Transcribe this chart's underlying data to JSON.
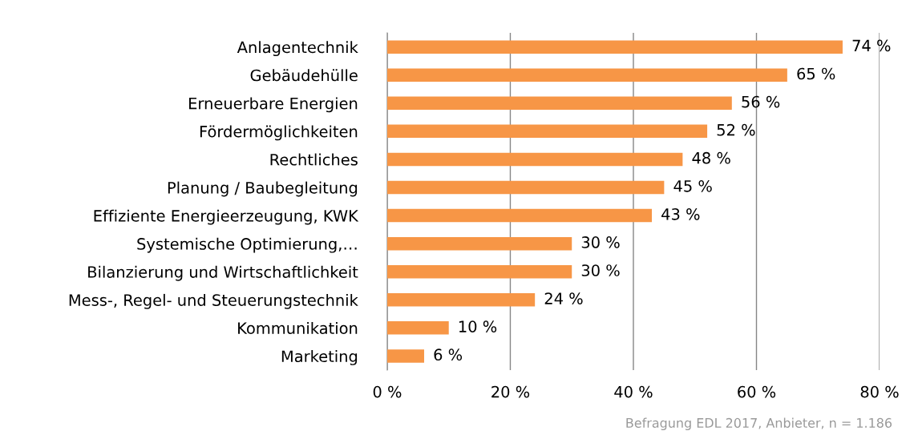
{
  "chart_data": {
    "type": "bar",
    "orientation": "horizontal",
    "categories": [
      "Anlagentechnik",
      "Gebäudehülle",
      "Erneuerbare Energien",
      "Fördermöglichkeiten",
      "Rechtliches",
      "Planung / Baubegleitung",
      "Effiziente Energieerzeugung, KWK",
      "Systemische Optimierung,…",
      "Bilanzierung und Wirtschaftlichkeit",
      "Mess-, Regel- und Steuerungstechnik",
      "Kommunikation",
      "Marketing"
    ],
    "values": [
      74,
      65,
      56,
      52,
      48,
      45,
      43,
      30,
      30,
      24,
      10,
      6
    ],
    "value_labels": [
      "74 %",
      "65 %",
      "56 %",
      "52 %",
      "48 %",
      "45 %",
      "43 %",
      "30 %",
      "30 %",
      "24 %",
      "10 %",
      "6 %"
    ],
    "color": "#f79646",
    "xlim": [
      0,
      80
    ],
    "xticks": [
      {
        "value": 0,
        "label": "0 %"
      },
      {
        "value": 20,
        "label": "20 %"
      },
      {
        "value": 40,
        "label": "40 %"
      },
      {
        "value": 60,
        "label": "60 %"
      },
      {
        "value": 80,
        "label": "80 %"
      }
    ],
    "grid": "x",
    "annotations": [
      "Befragung EDL 2017, Anbieter, n = 1.186"
    ]
  }
}
